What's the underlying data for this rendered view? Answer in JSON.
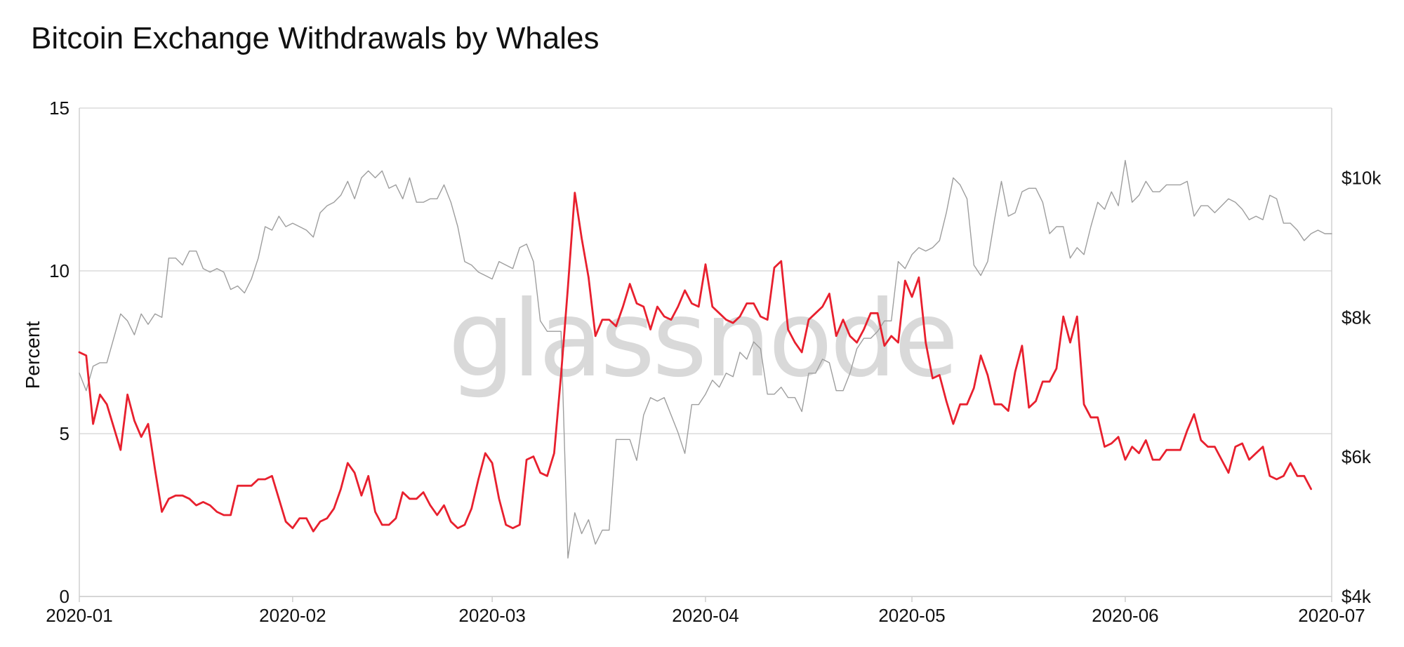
{
  "title": "Bitcoin Exchange Withdrawals by Whales",
  "watermark": "glassnode",
  "chart_data": {
    "type": "line",
    "title": "Bitcoin Exchange Withdrawals by Whales",
    "ylabel": "Percent",
    "ylabel_right": "",
    "ylim": [
      0,
      15
    ],
    "ylim_right": [
      4000,
      11000
    ],
    "y_ticks": [
      0,
      5,
      10,
      15
    ],
    "y_tick_labels": [
      "0",
      "5",
      "10",
      "15"
    ],
    "y_right_ticks": [
      4000,
      6000,
      8000,
      10000
    ],
    "y_right_tick_labels": [
      "$4k",
      "$6k",
      "$8k",
      "$10k"
    ],
    "x_tick_labels": [
      "2020-01",
      "2020-02",
      "2020-03",
      "2020-04",
      "2020-05",
      "2020-06",
      "2020-07"
    ],
    "x_tick_days": [
      0,
      31,
      60,
      91,
      121,
      152,
      182
    ],
    "grid": true,
    "legend": "none",
    "series": [
      {
        "axis": "left",
        "color": "#e8202e",
        "x_start": "2020-01-01",
        "x_step_days": 1,
        "values": [
          7.5,
          7.4,
          5.3,
          6.2,
          5.9,
          5.2,
          4.5,
          6.2,
          5.4,
          4.9,
          5.3,
          3.9,
          2.6,
          3.0,
          3.1,
          3.1,
          3.0,
          2.8,
          2.9,
          2.8,
          2.6,
          2.5,
          2.5,
          3.4,
          3.4,
          3.4,
          3.6,
          3.6,
          3.7,
          3.0,
          2.3,
          2.1,
          2.4,
          2.4,
          2.0,
          2.3,
          2.4,
          2.7,
          3.3,
          4.1,
          3.8,
          3.1,
          3.7,
          2.6,
          2.2,
          2.2,
          2.4,
          3.2,
          3.0,
          3.0,
          3.2,
          2.8,
          2.5,
          2.8,
          2.3,
          2.1,
          2.2,
          2.7,
          3.6,
          4.4,
          4.1,
          3.0,
          2.2,
          2.1,
          2.2,
          4.2,
          4.3,
          3.8,
          3.7,
          4.4,
          6.8,
          9.5,
          12.4,
          11.0,
          9.8,
          8.0,
          8.5,
          8.5,
          8.3,
          8.9,
          9.6,
          9.0,
          8.9,
          8.2,
          8.9,
          8.6,
          8.5,
          8.9,
          9.4,
          9.0,
          8.9,
          10.2,
          8.9,
          8.7,
          8.5,
          8.4,
          8.6,
          9.0,
          9.0,
          8.6,
          8.5,
          10.1,
          10.3,
          8.2,
          7.8,
          7.5,
          8.5,
          8.7,
          8.9,
          9.3,
          8.0,
          8.5,
          8.0,
          7.8,
          8.2,
          8.7,
          8.7,
          7.7,
          8.0,
          7.8,
          9.7,
          9.2,
          9.8,
          7.8,
          6.7,
          6.8,
          6.0,
          5.3,
          5.9,
          5.9,
          6.4,
          7.4,
          6.8,
          5.9,
          5.9,
          5.7,
          6.9,
          7.7,
          5.8,
          6.0,
          6.6,
          6.6,
          7.0,
          8.6,
          7.8,
          8.6,
          5.9,
          5.5,
          5.5,
          4.6,
          4.7,
          4.9,
          4.2,
          4.6,
          4.4,
          4.8,
          4.2,
          4.2,
          4.5,
          4.5,
          4.5,
          5.1,
          5.6,
          4.8,
          4.6,
          4.6,
          4.2,
          3.8,
          4.6,
          4.7,
          4.2,
          4.4,
          4.6,
          3.7,
          3.6,
          3.7,
          4.1,
          3.7,
          3.7,
          3.3
        ]
      },
      {
        "axis": "right",
        "color": "#9e9e9e",
        "x_start": "2020-01-01",
        "x_step_days": 1,
        "values": [
          7200,
          6950,
          7300,
          7350,
          7350,
          7700,
          8050,
          7950,
          7750,
          8050,
          7900,
          8050,
          8000,
          8850,
          8850,
          8750,
          8950,
          8950,
          8700,
          8650,
          8700,
          8650,
          8400,
          8450,
          8350,
          8550,
          8850,
          9300,
          9250,
          9450,
          9300,
          9350,
          9300,
          9250,
          9150,
          9500,
          9600,
          9650,
          9750,
          9950,
          9700,
          10000,
          10100,
          10000,
          10100,
          9850,
          9900,
          9700,
          10000,
          9650,
          9650,
          9700,
          9700,
          9900,
          9650,
          9300,
          8800,
          8750,
          8650,
          8600,
          8550,
          8800,
          8750,
          8700,
          9000,
          9050,
          8800,
          7950,
          7800,
          7800,
          7800,
          4550,
          5200,
          4900,
          5100,
          4750,
          4950,
          4950,
          6250,
          6250,
          6250,
          5950,
          6600,
          6850,
          6800,
          6850,
          6600,
          6350,
          6050,
          6750,
          6750,
          6900,
          7100,
          7000,
          7200,
          7150,
          7500,
          7400,
          7650,
          7550,
          6900,
          6900,
          7000,
          6850,
          6850,
          6650,
          7200,
          7200,
          7400,
          7350,
          6950,
          6950,
          7200,
          7550,
          7700,
          7700,
          7800,
          7950,
          7950,
          8800,
          8700,
          8900,
          9000,
          8950,
          9000,
          9100,
          9500,
          10000,
          9900,
          9700,
          8750,
          8600,
          8800,
          9400,
          9950,
          9450,
          9500,
          9800,
          9850,
          9850,
          9650,
          9200,
          9300,
          9300,
          8850,
          9000,
          8900,
          9300,
          9650,
          9550,
          9800,
          9600,
          10250,
          9650,
          9750,
          9950,
          9800,
          9800,
          9900,
          9900,
          9900,
          9950,
          9450,
          9600,
          9600,
          9500,
          9600,
          9700,
          9650,
          9550,
          9400,
          9450,
          9400,
          9750,
          9700,
          9350,
          9350,
          9250,
          9100,
          9200,
          9250,
          9200,
          9200
        ]
      }
    ]
  }
}
